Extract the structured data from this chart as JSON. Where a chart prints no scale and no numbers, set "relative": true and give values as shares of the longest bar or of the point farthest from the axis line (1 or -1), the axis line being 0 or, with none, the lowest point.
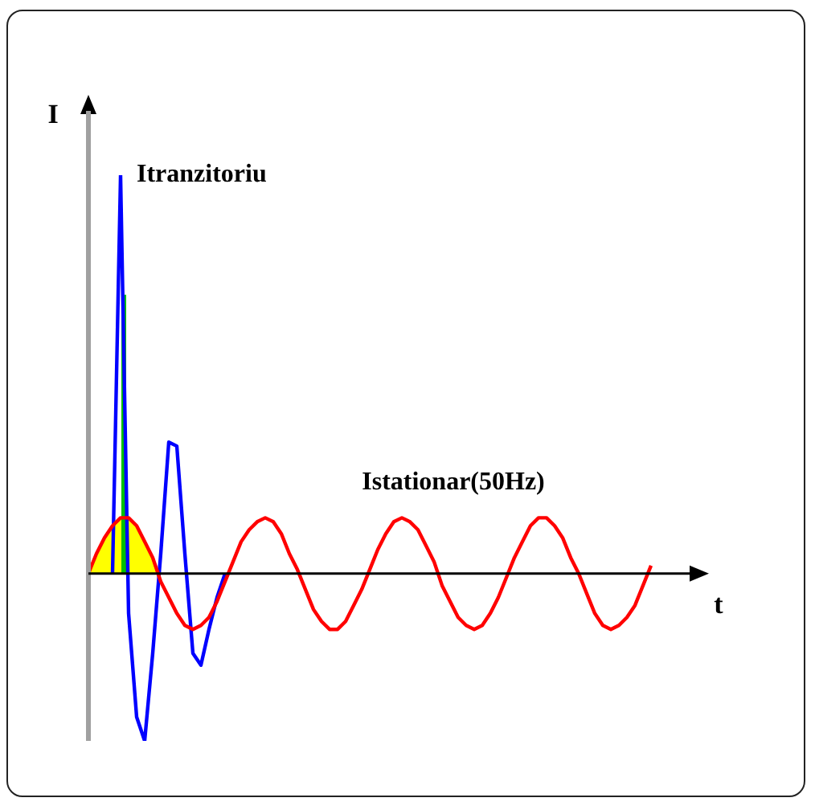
{
  "chart_data": {
    "type": "line",
    "relative": true,
    "xlabel": "t",
    "ylabel": "I",
    "legend": false,
    "grid": false,
    "marker": "none",
    "tick_labels": false,
    "categories": [
      null,
      null,
      null,
      null,
      null,
      null,
      null,
      null,
      null,
      null,
      null,
      null,
      null,
      null,
      null,
      null,
      null,
      null,
      null,
      null,
      null,
      null,
      null,
      null,
      null,
      null,
      null,
      null,
      null,
      null,
      null,
      null,
      null,
      null,
      null,
      null,
      null,
      null,
      null,
      null,
      null,
      null,
      null,
      null,
      null,
      null,
      null,
      null,
      null,
      null,
      null,
      null,
      null,
      null,
      null,
      null,
      null,
      null,
      null,
      null,
      null,
      null,
      null,
      null,
      null,
      null,
      null,
      null,
      null,
      null,
      null
    ],
    "series": [
      {
        "name": "Itranzitoriu",
        "color": "#0000ff",
        "values": [
          null,
          null,
          null,
          0,
          1,
          -0.1,
          -0.36,
          -0.42,
          -0.2,
          0.05,
          0.33,
          0.32,
          0.05,
          -0.2,
          -0.23,
          -0.14,
          -0.06,
          0,
          null,
          null,
          null,
          null,
          null,
          null,
          null,
          null,
          null,
          null,
          null,
          null,
          null,
          null,
          null,
          null,
          null,
          null,
          null,
          null,
          null,
          null,
          null,
          null,
          null,
          null,
          null,
          null,
          null,
          null,
          null,
          null,
          null,
          null,
          null,
          null,
          null,
          null,
          null,
          null,
          null,
          null,
          null,
          null,
          null,
          null,
          null,
          null,
          null,
          null,
          null,
          null,
          null
        ]
      },
      {
        "name": "Istationar(50Hz)",
        "color": "#ff0000",
        "values": [
          0,
          0.05,
          0.09,
          0.12,
          0.14,
          0.14,
          0.12,
          0.08,
          0.04,
          -0.02,
          -0.06,
          -0.1,
          -0.13,
          -0.14,
          -0.13,
          -0.11,
          -0.07,
          -0.02,
          0.03,
          0.08,
          0.11,
          0.13,
          0.14,
          0.13,
          0.1,
          0.05,
          0.01,
          -0.04,
          -0.09,
          -0.12,
          -0.14,
          -0.14,
          -0.12,
          -0.08,
          -0.04,
          0.01,
          0.06,
          0.1,
          0.13,
          0.14,
          0.13,
          0.11,
          0.07,
          0.03,
          -0.03,
          -0.07,
          -0.11,
          -0.13,
          -0.14,
          -0.13,
          -0.1,
          -0.06,
          -0.01,
          0.04,
          0.08,
          0.12,
          0.14,
          0.14,
          0.12,
          0.09,
          0.04,
          0,
          -0.05,
          -0.1,
          -0.13,
          -0.14,
          -0.13,
          -0.11,
          -0.08,
          -0.03,
          0.02
        ]
      }
    ]
  }
}
